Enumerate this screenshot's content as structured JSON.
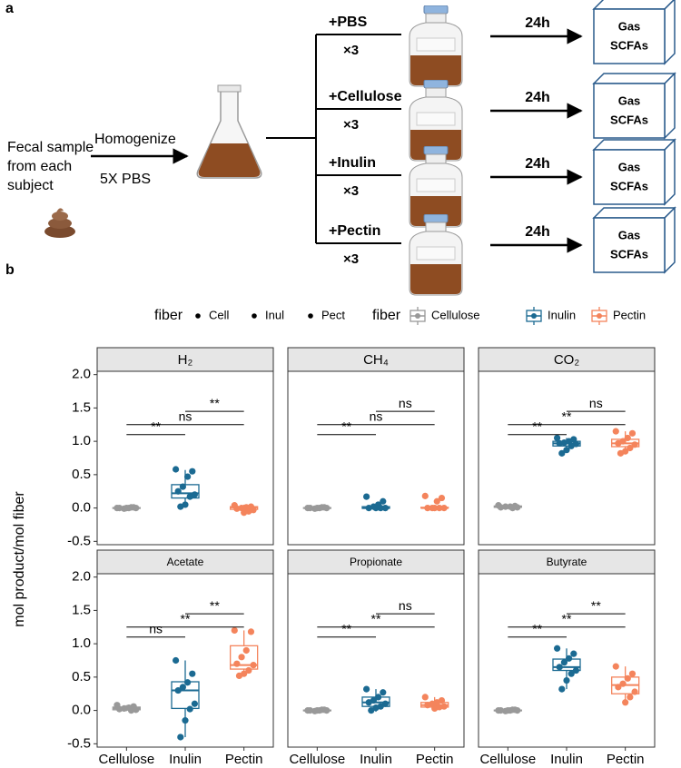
{
  "diagram": {
    "label": "a",
    "sample": [
      "Fecal sample",
      "from each",
      "subject"
    ],
    "step": "Homogenize",
    "buffer": "5X PBS",
    "branches": [
      {
        "treatment": "+PBS",
        "replicates": "×3",
        "time": "24h",
        "outputs": [
          "Gas",
          "SCFAs"
        ]
      },
      {
        "treatment": "+Cellulose",
        "replicates": "×3",
        "time": "24h",
        "outputs": [
          "Gas",
          "SCFAs"
        ]
      },
      {
        "treatment": "+Inulin",
        "replicates": "×3",
        "time": "24h",
        "outputs": [
          "Gas",
          "SCFAs"
        ]
      },
      {
        "treatment": "+Pectin",
        "replicates": "×3",
        "time": "24h",
        "outputs": [
          "Gas",
          "SCFAs"
        ]
      }
    ]
  },
  "chart_data": {
    "type": "box",
    "panel_label": "b",
    "ylabel": "mol product/mol fiber",
    "categories": [
      "Cellulose",
      "Inulin",
      "Pectin"
    ],
    "colors": [
      "#999999",
      "#1b6a92",
      "#f4845c"
    ],
    "point_legend": {
      "title": "fiber",
      "labels": [
        "Cell",
        "Inul",
        "Pect"
      ]
    },
    "box_legend_title": "fiber",
    "ylim": [
      -0.55,
      2.05
    ],
    "yticks": [
      {
        "value": 2,
        "label": "2.0"
      },
      1.5,
      {
        "value": 1,
        "label": "1.0"
      },
      0.5,
      {
        "value": 0,
        "label": "0.0"
      },
      -0.5
    ],
    "facets": [
      {
        "title": "H₂",
        "boxes": [
          {
            "min": -0.01,
            "q1": -0.005,
            "median": 0,
            "q3": 0.005,
            "max": 0.01,
            "points": [
              0,
              0.01,
              0,
              -0.01,
              0,
              0,
              0.01,
              0
            ]
          },
          {
            "min": 0.02,
            "q1": 0.15,
            "median": 0.22,
            "q3": 0.35,
            "max": 0.57,
            "points": [
              0.58,
              0.55,
              0.47,
              0.32,
              0.25,
              0.2,
              0.17,
              0.05,
              0.02
            ]
          },
          {
            "min": -0.07,
            "q1": -0.02,
            "median": 0.01,
            "q3": 0.02,
            "max": 0.05,
            "points": [
              0.04,
              0.02,
              0.01,
              0,
              -0.01,
              -0.03,
              -0.05,
              -0.07
            ]
          }
        ],
        "brackets": [
          {
            "between": [
              "Cellulose",
              "Inulin"
            ],
            "y": 1.1,
            "label": "**"
          },
          {
            "between": [
              "Cellulose",
              "Pectin"
            ],
            "y": 1.25,
            "label": "ns"
          },
          {
            "between": [
              "Inulin",
              "Pectin"
            ],
            "y": 1.45,
            "label": "**"
          }
        ]
      },
      {
        "title": "CH₄",
        "boxes": [
          {
            "min": -0.01,
            "q1": -0.005,
            "median": 0,
            "q3": 0.005,
            "max": 0.01,
            "points": [
              0,
              0.01,
              0,
              -0.01,
              0,
              0,
              0.01,
              0
            ]
          },
          {
            "min": -0.01,
            "q1": -0.005,
            "median": 0,
            "q3": 0.02,
            "max": 0.04,
            "points": [
              0.17,
              0.1,
              0.05,
              0.02,
              0,
              0,
              0,
              0
            ]
          },
          {
            "min": -0.01,
            "q1": 0,
            "median": 0,
            "q3": 0.01,
            "max": 0.02,
            "points": [
              0.18,
              0.15,
              0.1,
              0,
              0,
              0,
              0,
              0
            ]
          }
        ],
        "brackets": [
          {
            "between": [
              "Cellulose",
              "Inulin"
            ],
            "y": 1.1,
            "label": "**"
          },
          {
            "between": [
              "Cellulose",
              "Pectin"
            ],
            "y": 1.25,
            "label": "ns"
          },
          {
            "between": [
              "Inulin",
              "Pectin"
            ],
            "y": 1.45,
            "label": "ns"
          }
        ]
      },
      {
        "title": "CO₂",
        "boxes": [
          {
            "min": 0,
            "q1": 0.01,
            "median": 0.02,
            "q3": 0.03,
            "max": 0.04,
            "points": [
              0.04,
              0.03,
              0.02,
              0.02,
              0.01,
              0.01,
              0
            ]
          },
          {
            "min": 0.85,
            "q1": 0.93,
            "median": 0.97,
            "q3": 1.0,
            "max": 1.05,
            "points": [
              1.05,
              1.03,
              1.0,
              0.98,
              0.97,
              0.96,
              0.93,
              0.87,
              0.82
            ]
          },
          {
            "min": 0.83,
            "q1": 0.92,
            "median": 0.97,
            "q3": 1.03,
            "max": 1.15,
            "points": [
              1.15,
              1.12,
              1.05,
              1.0,
              0.97,
              0.95,
              0.9,
              0.85,
              0.82
            ]
          }
        ],
        "brackets": [
          {
            "between": [
              "Cellulose",
              "Inulin"
            ],
            "y": 1.1,
            "label": "**"
          },
          {
            "between": [
              "Cellulose",
              "Pectin"
            ],
            "y": 1.25,
            "label": "**"
          },
          {
            "between": [
              "Inulin",
              "Pectin"
            ],
            "y": 1.45,
            "label": "ns"
          }
        ]
      },
      {
        "title": "Acetate",
        "boxes": [
          {
            "min": -0.01,
            "q1": 0.01,
            "median": 0.03,
            "q3": 0.05,
            "max": 0.08,
            "points": [
              0.08,
              0.06,
              0.04,
              0.03,
              0.02,
              0.01,
              0
            ]
          },
          {
            "min": -0.4,
            "q1": 0.03,
            "median": 0.3,
            "q3": 0.43,
            "max": 0.75,
            "points": [
              0.75,
              0.55,
              0.42,
              0.35,
              0.3,
              0.1,
              0.02,
              -0.15,
              -0.4
            ]
          },
          {
            "min": 0.52,
            "q1": 0.62,
            "median": 0.68,
            "q3": 0.97,
            "max": 1.2,
            "points": [
              1.2,
              1.18,
              0.9,
              0.8,
              0.7,
              0.68,
              0.6,
              0.55,
              0.52
            ]
          }
        ],
        "brackets": [
          {
            "between": [
              "Cellulose",
              "Inulin"
            ],
            "y": 1.1,
            "label": "ns"
          },
          {
            "between": [
              "Cellulose",
              "Pectin"
            ],
            "y": 1.25,
            "label": "**"
          },
          {
            "between": [
              "Inulin",
              "Pectin"
            ],
            "y": 1.45,
            "label": "**"
          }
        ]
      },
      {
        "title": "Propionate",
        "boxes": [
          {
            "min": -0.01,
            "q1": -0.005,
            "median": 0,
            "q3": 0.005,
            "max": 0.01,
            "points": [
              0,
              0.01,
              0,
              -0.01,
              0,
              0,
              0.01,
              0
            ]
          },
          {
            "min": -0.02,
            "q1": 0.06,
            "median": 0.12,
            "q3": 0.2,
            "max": 0.32,
            "points": [
              0.32,
              0.27,
              0.2,
              0.15,
              0.12,
              0.1,
              0.06,
              0.04,
              0
            ]
          },
          {
            "min": 0.02,
            "q1": 0.05,
            "median": 0.08,
            "q3": 0.12,
            "max": 0.2,
            "points": [
              0.2,
              0.15,
              0.12,
              0.1,
              0.08,
              0.06,
              0.05,
              0.03
            ]
          }
        ],
        "brackets": [
          {
            "between": [
              "Cellulose",
              "Inulin"
            ],
            "y": 1.1,
            "label": "**"
          },
          {
            "between": [
              "Cellulose",
              "Pectin"
            ],
            "y": 1.25,
            "label": "**"
          },
          {
            "between": [
              "Inulin",
              "Pectin"
            ],
            "y": 1.45,
            "label": "ns"
          }
        ]
      },
      {
        "title": "Butyrate",
        "boxes": [
          {
            "min": -0.01,
            "q1": -0.005,
            "median": 0,
            "q3": 0.005,
            "max": 0.01,
            "points": [
              0,
              0.01,
              0,
              -0.01,
              0,
              0,
              0.01,
              0
            ]
          },
          {
            "min": 0.32,
            "q1": 0.6,
            "median": 0.65,
            "q3": 0.77,
            "max": 0.93,
            "points": [
              0.93,
              0.85,
              0.78,
              0.72,
              0.65,
              0.6,
              0.55,
              0.45,
              0.32
            ]
          },
          {
            "min": 0.1,
            "q1": 0.25,
            "median": 0.38,
            "q3": 0.5,
            "max": 0.66,
            "points": [
              0.66,
              0.55,
              0.48,
              0.4,
              0.35,
              0.28,
              0.2,
              0.12
            ]
          }
        ],
        "brackets": [
          {
            "between": [
              "Cellulose",
              "Inulin"
            ],
            "y": 1.1,
            "label": "**"
          },
          {
            "between": [
              "Cellulose",
              "Pectin"
            ],
            "y": 1.25,
            "label": "**"
          },
          {
            "between": [
              "Inulin",
              "Pectin"
            ],
            "y": 1.45,
            "label": "**"
          }
        ]
      }
    ]
  }
}
